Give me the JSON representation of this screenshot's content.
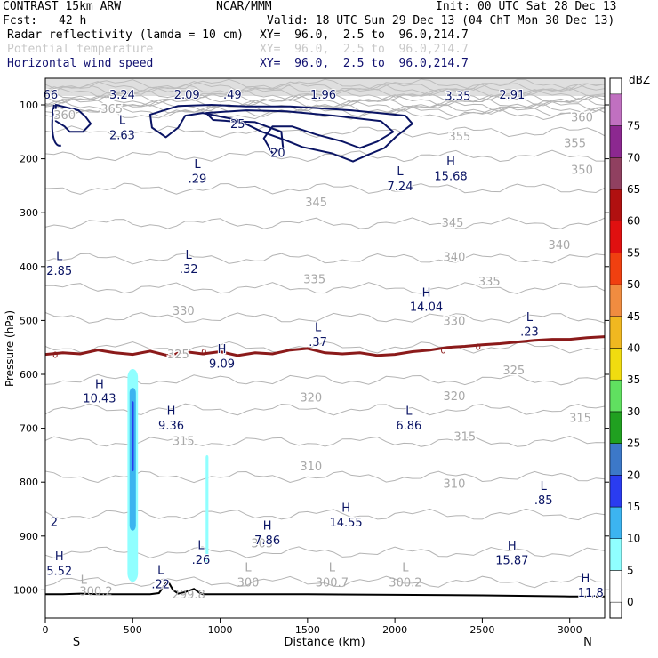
{
  "header": {
    "model": "CONTRAST 15km ARW",
    "org": "NCAR/MMM",
    "init": "Init: 00 UTC Sat 28 Dec 13",
    "fcst_label": "Fcst:",
    "fcst_value": "42 h",
    "valid": "Valid: 18 UTC Sun 29 Dec 13 (04 ChT Mon 30 Dec 13)",
    "fields": [
      {
        "name": "Radar reflectivity (lamda = 10 cm)",
        "xy": "XY=  96.0,  2.5 to  96.0,214.7",
        "color": "#000000"
      },
      {
        "name": "Potential temperature",
        "xy": "XY=  96.0,  2.5 to  96.0,214.7",
        "color": "#c8c8c8"
      },
      {
        "name": "Horizontal wind speed",
        "xy": "XY=  96.0,  2.5 to  96.0,214.7",
        "color": "#101070"
      }
    ]
  },
  "colors": {
    "theta": "#b4b4b4",
    "theta_label": "#a8a8a8",
    "wind": "#0a1464",
    "freezing": "#8b1a1a",
    "terrain": "#000000"
  },
  "chart_data": {
    "type": "contour_cross_section",
    "xlabel": "Distance (km)",
    "ylabel": "Pressure (hPa)",
    "xlim": [
      0,
      3200
    ],
    "ylim": [
      1050,
      50
    ],
    "x_ticks": [
      0,
      500,
      1000,
      1500,
      2000,
      2500,
      3000
    ],
    "y_ticks": [
      100,
      200,
      300,
      400,
      500,
      600,
      700,
      800,
      900,
      1000
    ],
    "x_end_labels": {
      "left": "S",
      "right": "N"
    },
    "colorbar": {
      "unit": "dBZ",
      "levels": [
        0,
        5,
        10,
        15,
        20,
        25,
        30,
        35,
        40,
        45,
        50,
        55,
        60,
        65,
        70,
        75
      ],
      "colors": [
        "#ffffff",
        "#90ffff",
        "#3cb4f0",
        "#2a3cf0",
        "#3c78c8",
        "#20a020",
        "#60e060",
        "#f0dc10",
        "#f0b820",
        "#f08c40",
        "#f04010",
        "#e01010",
        "#b01010",
        "#904060",
        "#8c2890",
        "#c070c0"
      ]
    },
    "theta_labels": [
      {
        "text": "365",
        "x": 380,
        "p": 107
      },
      {
        "text": "360",
        "x": 110,
        "p": 118
      },
      {
        "text": "360",
        "x": 3070,
        "p": 122
      },
      {
        "text": "355",
        "x": 2370,
        "p": 158
      },
      {
        "text": "355",
        "x": 3030,
        "p": 170
      },
      {
        "text": "350",
        "x": 3070,
        "p": 220
      },
      {
        "text": "345",
        "x": 1550,
        "p": 280
      },
      {
        "text": "345",
        "x": 2330,
        "p": 318
      },
      {
        "text": "340",
        "x": 2940,
        "p": 359
      },
      {
        "text": "340",
        "x": 2340,
        "p": 381
      },
      {
        "text": "335",
        "x": 1540,
        "p": 423
      },
      {
        "text": "335",
        "x": 2540,
        "p": 427
      },
      {
        "text": "330",
        "x": 790,
        "p": 481
      },
      {
        "text": "330",
        "x": 2340,
        "p": 500
      },
      {
        "text": "325",
        "x": 760,
        "p": 562
      },
      {
        "text": "325",
        "x": 2680,
        "p": 592
      },
      {
        "text": "320",
        "x": 1520,
        "p": 642
      },
      {
        "text": "320",
        "x": 2340,
        "p": 640
      },
      {
        "text": "315",
        "x": 3060,
        "p": 680
      },
      {
        "text": "315",
        "x": 2400,
        "p": 715
      },
      {
        "text": "315",
        "x": 790,
        "p": 723
      },
      {
        "text": "310",
        "x": 1520,
        "p": 770
      },
      {
        "text": "310",
        "x": 2340,
        "p": 802
      },
      {
        "text": "305",
        "x": 1240,
        "p": 913
      }
    ],
    "wind_labels": [
      {
        "text": "L",
        "x": 440,
        "p": 127
      },
      {
        "text": "2.63",
        "x": 440,
        "p": 155
      },
      {
        "text": "L",
        "x": 870,
        "p": 209
      },
      {
        "text": ".29",
        "x": 870,
        "p": 236
      },
      {
        "text": "L",
        "x": 2030,
        "p": 222
      },
      {
        "text": "7.24",
        "x": 2030,
        "p": 250
      },
      {
        "text": "H",
        "x": 2320,
        "p": 204
      },
      {
        "text": "15.68",
        "x": 2320,
        "p": 231
      },
      {
        "text": "L",
        "x": 80,
        "p": 380
      },
      {
        "text": "2.85",
        "x": 80,
        "p": 407
      },
      {
        "text": "L",
        "x": 820,
        "p": 377
      },
      {
        "text": ".32",
        "x": 820,
        "p": 404
      },
      {
        "text": "H",
        "x": 2180,
        "p": 447
      },
      {
        "text": "14.04",
        "x": 2180,
        "p": 474
      },
      {
        "text": "L",
        "x": 2770,
        "p": 493
      },
      {
        "text": ".23",
        "x": 2770,
        "p": 520
      },
      {
        "text": "L",
        "x": 1560,
        "p": 512
      },
      {
        "text": ".37",
        "x": 1560,
        "p": 539
      },
      {
        "text": "H",
        "x": 1010,
        "p": 552
      },
      {
        "text": "9.09",
        "x": 1010,
        "p": 579
      },
      {
        "text": "H",
        "x": 310,
        "p": 617
      },
      {
        "text": "10.43",
        "x": 310,
        "p": 644
      },
      {
        "text": "H",
        "x": 720,
        "p": 667
      },
      {
        "text": "9.36",
        "x": 720,
        "p": 694
      },
      {
        "text": "L",
        "x": 2080,
        "p": 667
      },
      {
        "text": "6.86",
        "x": 2080,
        "p": 694
      },
      {
        "text": "L",
        "x": 2850,
        "p": 806
      },
      {
        "text": ".85",
        "x": 2850,
        "p": 833
      },
      {
        "text": "H",
        "x": 1720,
        "p": 847
      },
      {
        "text": "14.55",
        "x": 1720,
        "p": 874
      },
      {
        "text": "H",
        "x": 1270,
        "p": 880
      },
      {
        "text": "7.86",
        "x": 1270,
        "p": 907
      },
      {
        "text": "H",
        "x": 2670,
        "p": 917
      },
      {
        "text": "15.87",
        "x": 2670,
        "p": 944
      },
      {
        "text": "L",
        "x": 890,
        "p": 916
      },
      {
        "text": ".26",
        "x": 890,
        "p": 943
      },
      {
        "text": "2",
        "x": 50,
        "p": 873
      },
      {
        "text": "H",
        "x": 80,
        "p": 937
      },
      {
        "text": "5.52",
        "x": 80,
        "p": 964
      },
      {
        "text": "L",
        "x": 660,
        "p": 962
      },
      {
        "text": ".22",
        "x": 660,
        "p": 989
      },
      {
        "text": "H",
        "x": 3090,
        "p": 977
      },
      {
        "text": "11.8",
        "x": 3120,
        "p": 1004
      },
      {
        "text": "3.24",
        "x": 440,
        "p": 80
      },
      {
        "text": "2.09",
        "x": 810,
        "p": 80
      },
      {
        "text": ".49",
        "x": 1070,
        "p": 80
      },
      {
        "text": "1.96",
        "x": 1590,
        "p": 80
      },
      {
        "text": "3.35",
        "x": 2360,
        "p": 83
      },
      {
        "text": "2.91",
        "x": 2670,
        "p": 80
      },
      {
        "text": "66",
        "x": 30,
        "p": 80
      },
      {
        "text": "20",
        "x": 1330,
        "p": 188
      },
      {
        "text": "25",
        "x": 1100,
        "p": 135
      }
    ],
    "surface_labels": [
      {
        "text": "L",
        "x": 220,
        "p": 980
      },
      {
        "text": "300.2",
        "x": 290,
        "p": 1002
      },
      {
        "text": "L",
        "x": 1160,
        "p": 957
      },
      {
        "text": "300",
        "x": 1160,
        "p": 985
      },
      {
        "text": "L",
        "x": 1640,
        "p": 957
      },
      {
        "text": "300.7",
        "x": 1640,
        "p": 985
      },
      {
        "text": "L",
        "x": 2060,
        "p": 957
      },
      {
        "text": "300.2",
        "x": 2060,
        "p": 985
      },
      {
        "text": "299.8",
        "x": 820,
        "p": 1008
      }
    ],
    "freezing_level": {
      "label": "0",
      "x": [
        0,
        100,
        200,
        300,
        400,
        500,
        600,
        700,
        800,
        900,
        1000,
        1100,
        1200,
        1300,
        1400,
        1500,
        1600,
        1700,
        1800,
        1900,
        2000,
        2100,
        2200,
        2300,
        2400,
        2500,
        2600,
        2700,
        2800,
        2900,
        3000,
        3100,
        3200
      ],
      "p": [
        563,
        560,
        562,
        555,
        560,
        563,
        557,
        565,
        558,
        562,
        558,
        565,
        560,
        562,
        555,
        552,
        560,
        562,
        560,
        565,
        563,
        558,
        555,
        550,
        548,
        545,
        543,
        540,
        537,
        535,
        535,
        532,
        530
      ]
    },
    "terrain": {
      "x": [
        0,
        100,
        200,
        300,
        400,
        500,
        600,
        650,
        700,
        730,
        760,
        800,
        850,
        880,
        900,
        1000,
        1200,
        1500,
        2000,
        2500,
        3000,
        3200
      ],
      "p": [
        1008,
        1008,
        1007,
        1008,
        1008,
        1008,
        1008,
        1006,
        983,
        1000,
        1007,
        1004,
        998,
        1005,
        1008,
        1008,
        1008,
        1008,
        1009,
        1010,
        1012,
        1012
      ]
    },
    "reflectivity_cells": [
      {
        "x_center": 500,
        "x_halfwidth": 30,
        "p_top": 590,
        "p_bottom": 985,
        "dbz": 5
      },
      {
        "x_center": 500,
        "x_halfwidth": 18,
        "p_top": 625,
        "p_bottom": 890,
        "dbz": 10
      },
      {
        "x_center": 500,
        "x_halfwidth": 6,
        "p_top": 650,
        "p_bottom": 780,
        "dbz": 15
      },
      {
        "x_center": 925,
        "x_halfwidth": 8,
        "p_top": 750,
        "p_bottom": 950,
        "dbz": 5
      }
    ]
  }
}
